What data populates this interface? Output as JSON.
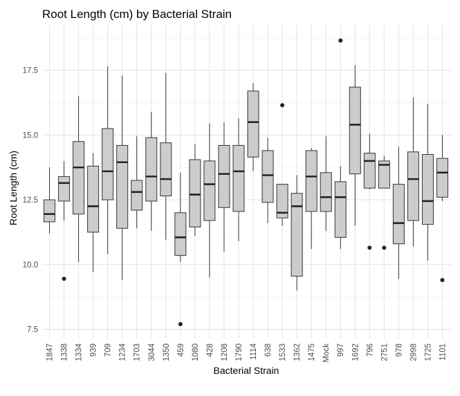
{
  "chart_data": {
    "type": "boxplot",
    "title": "Root Length (cm) by Bacterial Strain",
    "xlabel": "Bacterial Strain",
    "ylabel": "Root Length (cm)",
    "ylim": [
      7.2,
      19.0
    ],
    "yticks": [
      7.5,
      10.0,
      12.5,
      15.0,
      17.5
    ],
    "ytick_labels": [
      "7.5",
      "10.0",
      "12.5",
      "15.0",
      "17.5"
    ],
    "grid": true,
    "box_fill": "#cccccc",
    "box_stroke": "#333333",
    "categories": [
      "1847",
      "1338",
      "1334",
      "939",
      "709",
      "1234",
      "1703",
      "3044",
      "1350",
      "459",
      "1080",
      "428",
      "1208",
      "1790",
      "1114",
      "638",
      "1533",
      "1362",
      "1475",
      "Mock",
      "997",
      "1692",
      "796",
      "2751",
      "978",
      "2998",
      "1725",
      "1101"
    ],
    "boxes": [
      {
        "category": "1847",
        "whisker_low": 11.2,
        "q1": 11.65,
        "median": 11.95,
        "q3": 12.5,
        "whisker_high": 13.75,
        "outliers": []
      },
      {
        "category": "1338",
        "whisker_low": 11.7,
        "q1": 12.45,
        "median": 13.15,
        "q3": 13.4,
        "whisker_high": 14.0,
        "outliers": [
          9.45
        ]
      },
      {
        "category": "1334",
        "whisker_low": 10.1,
        "q1": 11.95,
        "median": 13.75,
        "q3": 14.75,
        "whisker_high": 16.5,
        "outliers": []
      },
      {
        "category": "939",
        "whisker_low": 9.7,
        "q1": 11.25,
        "median": 12.25,
        "q3": 13.8,
        "whisker_high": 14.3,
        "outliers": []
      },
      {
        "category": "709",
        "whisker_low": 10.4,
        "q1": 12.5,
        "median": 13.6,
        "q3": 15.25,
        "whisker_high": 17.65,
        "outliers": []
      },
      {
        "category": "1234",
        "whisker_low": 9.4,
        "q1": 11.4,
        "median": 13.95,
        "q3": 14.6,
        "whisker_high": 17.3,
        "outliers": []
      },
      {
        "category": "1703",
        "whisker_low": 11.4,
        "q1": 12.1,
        "median": 12.8,
        "q3": 13.25,
        "whisker_high": 14.95,
        "outliers": []
      },
      {
        "category": "3044",
        "whisker_low": 11.3,
        "q1": 12.45,
        "median": 13.4,
        "q3": 14.9,
        "whisker_high": 15.9,
        "outliers": []
      },
      {
        "category": "1350",
        "whisker_low": 10.95,
        "q1": 12.65,
        "median": 13.3,
        "q3": 14.7,
        "whisker_high": 17.4,
        "outliers": []
      },
      {
        "category": "459",
        "whisker_low": 10.1,
        "q1": 10.35,
        "median": 11.05,
        "q3": 12.0,
        "whisker_high": 13.55,
        "outliers": [
          7.7
        ]
      },
      {
        "category": "1080",
        "whisker_low": 11.1,
        "q1": 11.45,
        "median": 12.7,
        "q3": 14.05,
        "whisker_high": 14.65,
        "outliers": []
      },
      {
        "category": "428",
        "whisker_low": 9.5,
        "q1": 11.7,
        "median": 13.1,
        "q3": 14.0,
        "whisker_high": 15.45,
        "outliers": []
      },
      {
        "category": "1208",
        "whisker_low": 10.5,
        "q1": 12.2,
        "median": 13.5,
        "q3": 14.6,
        "whisker_high": 15.5,
        "outliers": []
      },
      {
        "category": "1790",
        "whisker_low": 10.9,
        "q1": 12.05,
        "median": 13.6,
        "q3": 14.6,
        "whisker_high": 15.65,
        "outliers": []
      },
      {
        "category": "1114",
        "whisker_low": 13.6,
        "q1": 14.15,
        "median": 15.5,
        "q3": 16.7,
        "whisker_high": 17.0,
        "outliers": []
      },
      {
        "category": "638",
        "whisker_low": 11.6,
        "q1": 12.4,
        "median": 13.45,
        "q3": 14.4,
        "whisker_high": 14.9,
        "outliers": []
      },
      {
        "category": "1533",
        "whisker_low": 11.5,
        "q1": 11.8,
        "median": 12.0,
        "q3": 13.1,
        "whisker_high": 13.1,
        "outliers": [
          16.15
        ]
      },
      {
        "category": "1362",
        "whisker_low": 9.0,
        "q1": 9.55,
        "median": 12.25,
        "q3": 12.75,
        "whisker_high": 13.45,
        "outliers": []
      },
      {
        "category": "1475",
        "whisker_low": 10.6,
        "q1": 12.05,
        "median": 13.4,
        "q3": 14.4,
        "whisker_high": 14.5,
        "outliers": []
      },
      {
        "category": "Mock",
        "whisker_low": 11.3,
        "q1": 12.05,
        "median": 12.6,
        "q3": 13.55,
        "whisker_high": 14.95,
        "outliers": []
      },
      {
        "category": "997",
        "whisker_low": 10.6,
        "q1": 11.05,
        "median": 12.6,
        "q3": 13.2,
        "whisker_high": 13.8,
        "outliers": [
          18.65
        ]
      },
      {
        "category": "1692",
        "whisker_low": 11.5,
        "q1": 13.5,
        "median": 15.4,
        "q3": 16.85,
        "whisker_high": 17.7,
        "outliers": []
      },
      {
        "category": "796",
        "whisker_low": 12.9,
        "q1": 12.95,
        "median": 14.0,
        "q3": 14.3,
        "whisker_high": 15.05,
        "outliers": [
          10.65
        ]
      },
      {
        "category": "2751",
        "whisker_low": 12.95,
        "q1": 12.95,
        "median": 13.85,
        "q3": 14.0,
        "whisker_high": 14.2,
        "outliers": [
          10.65
        ]
      },
      {
        "category": "978",
        "whisker_low": 9.45,
        "q1": 10.8,
        "median": 11.6,
        "q3": 13.1,
        "whisker_high": 14.55,
        "outliers": []
      },
      {
        "category": "2998",
        "whisker_low": 10.7,
        "q1": 11.7,
        "median": 13.3,
        "q3": 14.35,
        "whisker_high": 16.45,
        "outliers": []
      },
      {
        "category": "1725",
        "whisker_low": 10.15,
        "q1": 11.55,
        "median": 12.45,
        "q3": 14.25,
        "whisker_high": 16.2,
        "outliers": []
      },
      {
        "category": "1101",
        "whisker_low": 12.45,
        "q1": 12.6,
        "median": 13.55,
        "q3": 14.1,
        "whisker_high": 15.0,
        "outliers": [
          9.4
        ]
      }
    ]
  }
}
